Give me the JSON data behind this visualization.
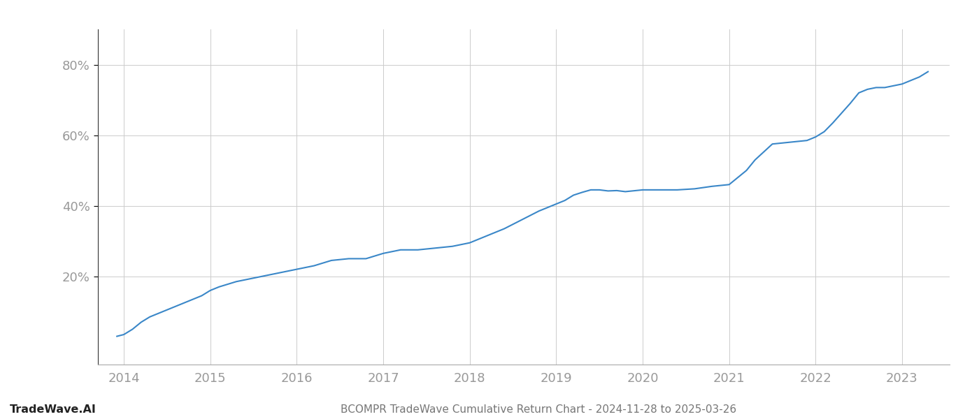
{
  "title": "BCOMPR TradeWave Cumulative Return Chart - 2024-11-28 to 2025-03-26",
  "watermark": "TradeWave.AI",
  "line_color": "#3a87c8",
  "background_color": "#ffffff",
  "grid_color": "#cccccc",
  "x_tick_labels": [
    "2014",
    "2015",
    "2016",
    "2017",
    "2018",
    "2019",
    "2020",
    "2021",
    "2022",
    "2023"
  ],
  "x_values": [
    2013.92,
    2014.0,
    2014.1,
    2014.2,
    2014.3,
    2014.5,
    2014.7,
    2014.9,
    2015.0,
    2015.1,
    2015.3,
    2015.5,
    2015.7,
    2015.9,
    2016.0,
    2016.2,
    2016.4,
    2016.6,
    2016.8,
    2017.0,
    2017.2,
    2017.4,
    2017.6,
    2017.8,
    2018.0,
    2018.2,
    2018.4,
    2018.6,
    2018.8,
    2019.0,
    2019.1,
    2019.2,
    2019.3,
    2019.4,
    2019.5,
    2019.6,
    2019.7,
    2019.8,
    2020.0,
    2020.2,
    2020.4,
    2020.6,
    2020.8,
    2021.0,
    2021.1,
    2021.2,
    2021.3,
    2021.5,
    2021.7,
    2021.9,
    2022.0,
    2022.1,
    2022.2,
    2022.4,
    2022.5,
    2022.6,
    2022.7,
    2022.8,
    2023.0,
    2023.1,
    2023.2,
    2023.3
  ],
  "y_values": [
    3.0,
    3.5,
    5.0,
    7.0,
    8.5,
    10.5,
    12.5,
    14.5,
    16.0,
    17.0,
    18.5,
    19.5,
    20.5,
    21.5,
    22.0,
    23.0,
    24.5,
    25.0,
    25.0,
    26.5,
    27.5,
    27.5,
    28.0,
    28.5,
    29.5,
    31.5,
    33.5,
    36.0,
    38.5,
    40.5,
    41.5,
    43.0,
    43.8,
    44.5,
    44.5,
    44.2,
    44.3,
    44.0,
    44.5,
    44.5,
    44.5,
    44.8,
    45.5,
    46.0,
    48.0,
    50.0,
    53.0,
    57.5,
    58.0,
    58.5,
    59.5,
    61.0,
    63.5,
    69.0,
    72.0,
    73.0,
    73.5,
    73.5,
    74.5,
    75.5,
    76.5,
    78.0
  ],
  "ylim": [
    -5,
    90
  ],
  "xlim": [
    2013.7,
    2023.55
  ],
  "line_width": 1.5,
  "title_fontsize": 11,
  "watermark_fontsize": 11.5,
  "tick_fontsize": 13,
  "title_color": "#777777",
  "watermark_color": "#222222",
  "tick_color": "#999999",
  "spine_color": "#aaaaaa",
  "left_spine_color": "#333333"
}
